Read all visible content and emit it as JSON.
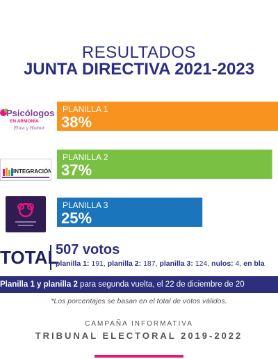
{
  "header": {
    "line1": "RESULTADOS",
    "line2": "JUNTA DIRECTIVA 2021-2023"
  },
  "logos": {
    "logo1": {
      "name": "Psicólogos",
      "sub": "EN ARMONÍA",
      "tag": "Ética y Humor"
    },
    "logo2": {
      "name": "INTEGRACIÓN"
    },
    "logo3": {
      "name": "unity-emblem"
    }
  },
  "chart_data": {
    "type": "bar",
    "orientation": "horizontal",
    "categories": [
      "PLANILLA 1",
      "PLANILLA 2",
      "PLANILLA 3"
    ],
    "values": [
      38,
      37,
      25
    ],
    "value_labels": [
      "38%",
      "37%",
      "25%"
    ],
    "colors": [
      "#f7931e",
      "#7ac143",
      "#1b75bc"
    ],
    "xlim": [
      0,
      38
    ]
  },
  "total": {
    "label": "TOTAL",
    "votes": "507 votos",
    "breakdown_parts": [
      {
        "k": "planilla 1:",
        "v": " 191, "
      },
      {
        "k": "planilla 2:",
        "v": " 187, "
      },
      {
        "k": "planilla 3:",
        "v": " 124, "
      },
      {
        "k": "nulos:",
        "v": " 4, "
      },
      {
        "k": "en bla",
        "v": ""
      }
    ]
  },
  "runoff": {
    "bold": "Planilla 1 y planilla 2",
    "rest": " para segunda vuelta, el 22 de diciembre de 20"
  },
  "note": "*Los porcentajes se basan en el total de votos válidos.",
  "footer": {
    "campaign": "CAMPAÑA INFORMATIVA",
    "tribunal": "TRIBUNAL ELECTORAL 2019-2022"
  }
}
